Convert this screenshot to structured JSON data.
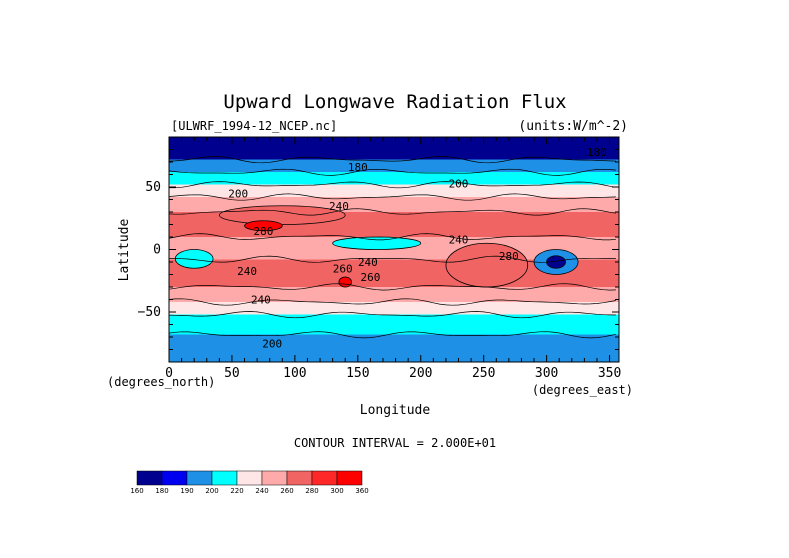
{
  "chart_data": {
    "type": "heatmap",
    "title": "Upward Longwave Radiation Flux",
    "file_label": "[ULWRF_1994-12_NCEP.nc]",
    "units_label": "(units:W/m^-2)",
    "xlabel": "Longitude",
    "ylabel": "Latitude",
    "x_unit_label": "(degrees_east)",
    "y_unit_label": "(degrees_north)",
    "xlim": [
      0,
      357.5
    ],
    "ylim": [
      -90,
      90
    ],
    "x_ticks": [
      0,
      50,
      100,
      150,
      200,
      250,
      300,
      350
    ],
    "y_ticks": [
      -50,
      0,
      50
    ],
    "contour_interval_text": "CONTOUR INTERVAL = 2.000E+01",
    "contour_labels": [
      {
        "x": 150,
        "y": 66,
        "text": "180"
      },
      {
        "x": 340,
        "y": 78,
        "text": "180"
      },
      {
        "x": 230,
        "y": 53,
        "text": "200"
      },
      {
        "x": 55,
        "y": 45,
        "text": "200"
      },
      {
        "x": 135,
        "y": 35,
        "text": "240"
      },
      {
        "x": 230,
        "y": 8,
        "text": "240"
      },
      {
        "x": 270,
        "y": -5,
        "text": "280"
      },
      {
        "x": 62,
        "y": -17,
        "text": "240"
      },
      {
        "x": 158,
        "y": -10,
        "text": "240"
      },
      {
        "x": 138,
        "y": -15,
        "text": "260"
      },
      {
        "x": 160,
        "y": -22,
        "text": "260"
      },
      {
        "x": 75,
        "y": 15,
        "text": "280"
      },
      {
        "x": 73,
        "y": -40,
        "text": "240"
      },
      {
        "x": 82,
        "y": -75,
        "text": "200"
      }
    ],
    "colorbar": {
      "ticks": [
        160,
        180,
        190,
        200,
        220,
        240,
        260,
        280,
        300,
        360
      ],
      "colors": [
        "#00008f",
        "#0000f0",
        "#1e90e6",
        "#00ffff",
        "#ffe6e6",
        "#ffaaaa",
        "#f06464",
        "#ff2828",
        "#ff0000"
      ]
    },
    "zonal_bands": [
      {
        "lat_from": 90,
        "lat_to": 72,
        "value": 170
      },
      {
        "lat_from": 72,
        "lat_to": 62,
        "value": 190
      },
      {
        "lat_from": 62,
        "lat_to": 52,
        "value": 210
      },
      {
        "lat_from": 52,
        "lat_to": 42,
        "value": 230
      },
      {
        "lat_from": 42,
        "lat_to": 30,
        "value": 250
      },
      {
        "lat_from": 30,
        "lat_to": 10,
        "value": 275
      },
      {
        "lat_from": 10,
        "lat_to": -8,
        "value": 250
      },
      {
        "lat_from": -8,
        "lat_to": -30,
        "value": 265
      },
      {
        "lat_from": -30,
        "lat_to": -42,
        "value": 245
      },
      {
        "lat_from": -42,
        "lat_to": -52,
        "value": 225
      },
      {
        "lat_from": -52,
        "lat_to": -68,
        "value": 210
      },
      {
        "lat_from": -68,
        "lat_to": -90,
        "value": 195
      }
    ],
    "features": [
      {
        "type": "warm",
        "lon": [
          40,
          140
        ],
        "lat": [
          20,
          35
        ],
        "value": 270
      },
      {
        "type": "hot",
        "lon": [
          60,
          90
        ],
        "lat": [
          15,
          23
        ],
        "value": 300
      },
      {
        "type": "cold",
        "lon": [
          5,
          35
        ],
        "lat": [
          -15,
          0
        ],
        "value": 210
      },
      {
        "type": "cold",
        "lon": [
          130,
          200
        ],
        "lat": [
          0,
          10
        ],
        "value": 215
      },
      {
        "type": "warm",
        "lon": [
          220,
          285
        ],
        "lat": [
          -30,
          5
        ],
        "value": 275
      },
      {
        "type": "cold",
        "lon": [
          290,
          325
        ],
        "lat": [
          -20,
          0
        ],
        "value": 190
      },
      {
        "type": "coldest",
        "lon": [
          300,
          315
        ],
        "lat": [
          -15,
          -5
        ],
        "value": 170
      },
      {
        "type": "hot",
        "lon": [
          135,
          145
        ],
        "lat": [
          -30,
          -22
        ],
        "value": 300
      }
    ]
  }
}
